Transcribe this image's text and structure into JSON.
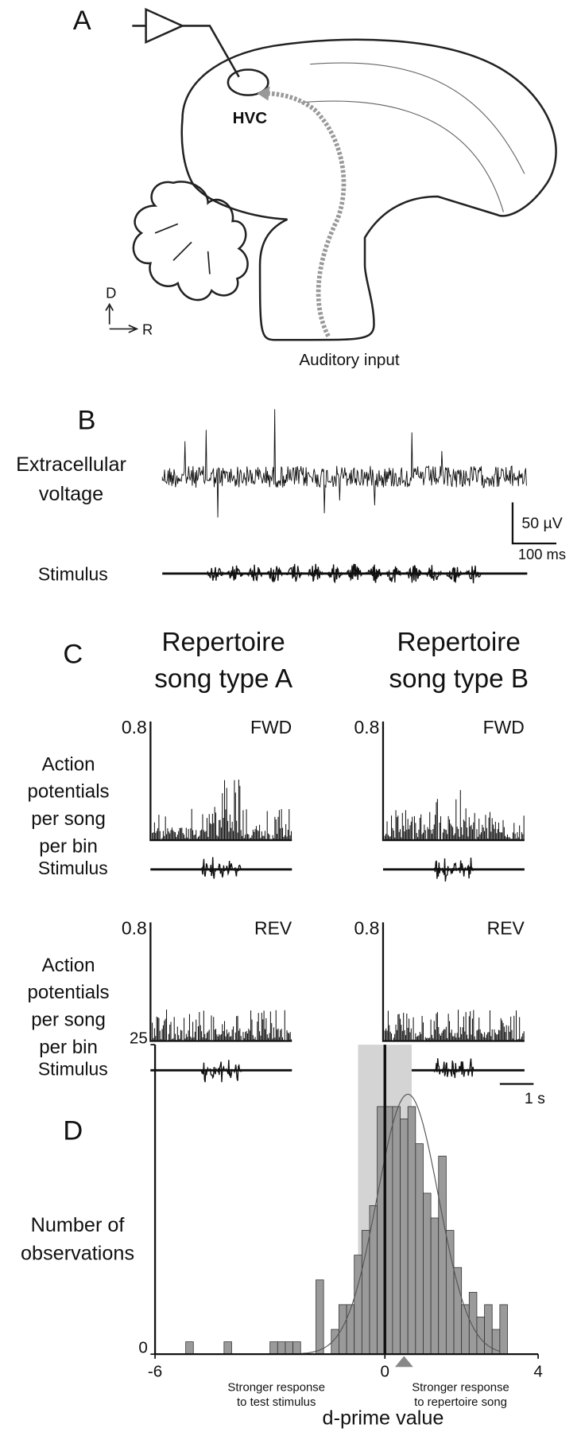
{
  "panel_a": {
    "label": "A",
    "region": "HVC",
    "axis_dorsal": "D",
    "axis_rostral": "R",
    "input": "Auditory input"
  },
  "panel_b": {
    "label": "B",
    "trace_label": [
      "Extracellular",
      "voltage"
    ],
    "stimulus_label": "Stimulus",
    "scale_y": "50 µV",
    "scale_x": "100 ms"
  },
  "panel_c": {
    "label": "C",
    "columns": [
      [
        "Repertoire",
        "song type A"
      ],
      [
        "Repertoire",
        "song type B"
      ]
    ],
    "rows": [
      "FWD",
      "REV"
    ],
    "y_label": [
      "Action",
      "potentials",
      "per song",
      "per bin"
    ],
    "ytick": 0.8,
    "stimulus_label": "Stimulus",
    "scale_x": "1 s"
  },
  "chart_data": {
    "type": "histogram",
    "label": "D",
    "ylabel": [
      "Number of",
      "observations"
    ],
    "xlabel": "d-prime value",
    "annotations": [
      [
        "Stronger response",
        "to test stimulus"
      ],
      [
        "Stronger response",
        "to repertoire song"
      ]
    ],
    "bins": [
      -6,
      -5.8,
      -5.6,
      -5.4,
      -5.2,
      -5,
      -4.8,
      -4.6,
      -4.4,
      -4.2,
      -4,
      -3.8,
      -3.6,
      -3.4,
      -3.2,
      -3,
      -2.8,
      -2.6,
      -2.4,
      -2.2,
      -2,
      -1.8,
      -1.6,
      -1.4,
      -1.2,
      -1,
      -0.8,
      -0.6,
      -0.4,
      -0.2,
      0,
      0.2,
      0.4,
      0.6,
      0.8,
      1,
      1.2,
      1.4,
      1.6,
      1.8,
      2,
      2.2,
      2.4,
      2.6,
      2.8,
      3,
      3.2
    ],
    "counts": [
      0,
      0,
      0,
      0,
      1,
      0,
      0,
      0,
      0,
      1,
      0,
      0,
      0,
      0,
      0,
      1,
      1,
      1,
      1,
      0,
      0,
      6,
      0,
      2,
      4,
      4,
      8,
      10,
      12,
      20,
      20,
      20,
      19,
      20,
      17,
      13,
      11,
      16,
      10,
      7,
      4,
      5,
      3,
      4,
      2,
      4
    ],
    "color": "#9a9a9a",
    "xlim": [
      -6,
      4
    ],
    "ylim": [
      0,
      25
    ],
    "xticks": [
      -6,
      0,
      4
    ],
    "yticks": [
      0,
      25
    ],
    "shaded_range": [
      -0.7,
      0.7
    ],
    "marker": 0.5,
    "fit": {
      "mean": 0.6,
      "sd": 0.8,
      "peak": 21
    }
  }
}
